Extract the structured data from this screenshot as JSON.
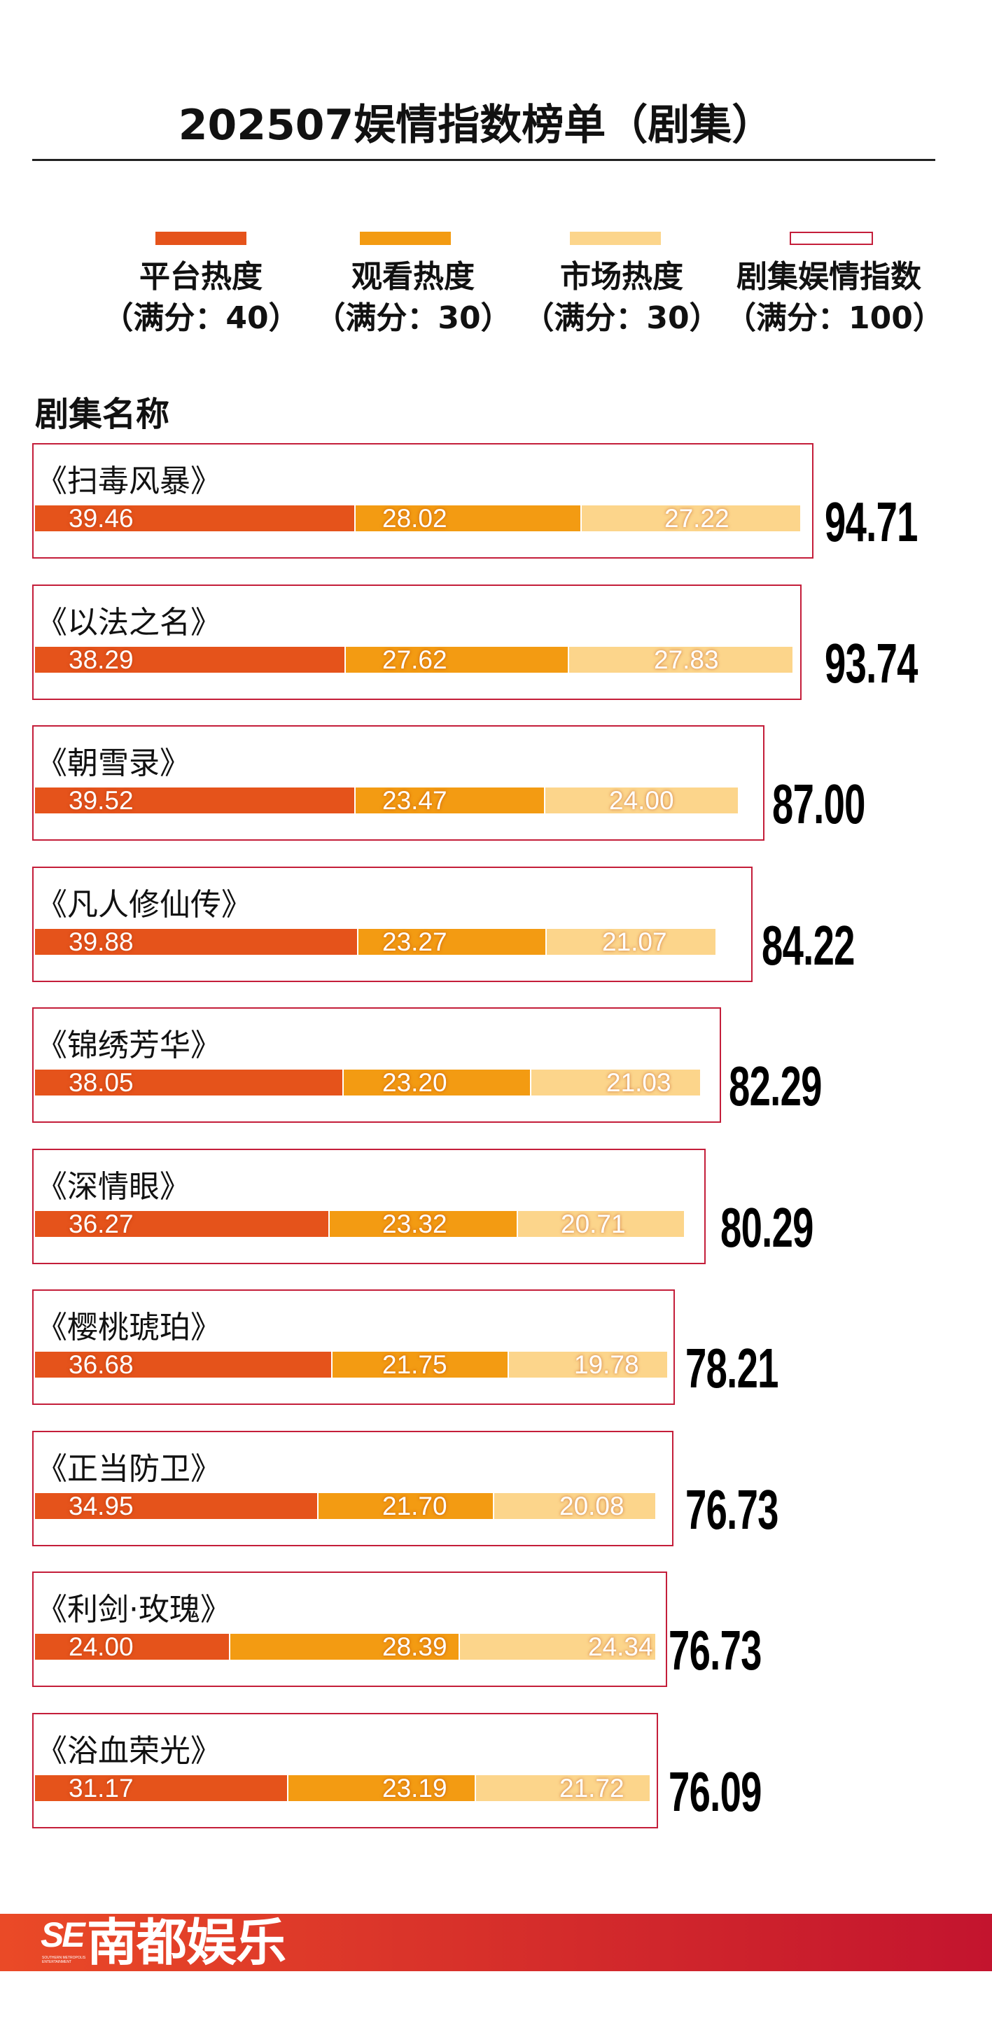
{
  "chart_data": {
    "type": "bar",
    "orientation": "horizontal",
    "stacked": true,
    "title": "202507娱情指数榜单（剧集）",
    "ylabel": "剧集名称",
    "categories": [
      "《扫毒风暴》",
      "《以法之名》",
      "《朝雪录》",
      "《凡人修仙传》",
      "《锦绣芳华》",
      "《深情眼》",
      "《樱桃琥珀》",
      "《正当防卫》",
      "《利剑·玫瑰》",
      "《浴血荣光》"
    ],
    "series": [
      {
        "name": "平台热度",
        "note": "（满分：40）",
        "max": 40,
        "color": "#e5531b",
        "values": [
          39.46,
          38.29,
          39.52,
          39.88,
          38.05,
          36.27,
          36.68,
          34.95,
          24.0,
          31.17
        ]
      },
      {
        "name": "观看热度",
        "note": "（满分：30）",
        "max": 30,
        "color": "#f39b12",
        "values": [
          28.02,
          27.62,
          23.47,
          23.27,
          23.2,
          23.32,
          21.75,
          21.7,
          28.39,
          23.19
        ]
      },
      {
        "name": "市场热度",
        "note": "（满分：30）",
        "max": 30,
        "color": "#fcd58b",
        "values": [
          27.22,
          27.83,
          24.0,
          21.07,
          21.03,
          20.71,
          19.78,
          20.08,
          24.34,
          21.72
        ]
      }
    ],
    "total": {
      "name": "剧集娱情指数",
      "note": "（满分：100）",
      "max": 100,
      "color": "#c41e3a",
      "values": [
        94.71,
        93.74,
        87.0,
        84.22,
        82.29,
        80.29,
        78.21,
        76.73,
        76.73,
        76.09
      ]
    },
    "grid": false,
    "legend_position": "top"
  },
  "footer": {
    "logo_mark": "SE",
    "logo_subtext": "SOUTHERN METROPOLIS ENTERTAINMENT",
    "logo_text": "南都娱乐",
    "band_colors": [
      "#ea4a27",
      "#c3142e"
    ]
  }
}
